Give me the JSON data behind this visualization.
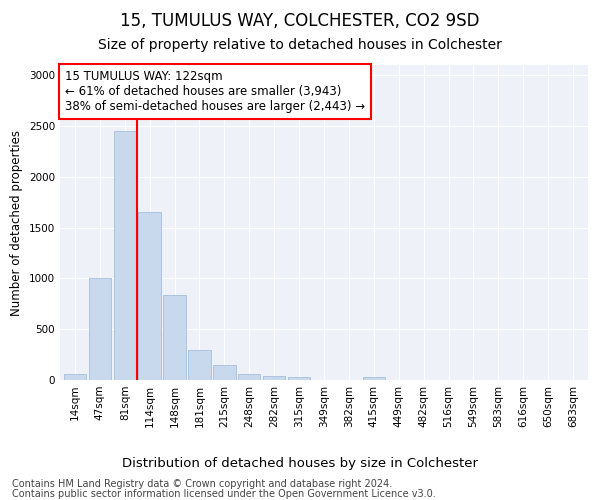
{
  "title": "15, TUMULUS WAY, COLCHESTER, CO2 9SD",
  "subtitle": "Size of property relative to detached houses in Colchester",
  "xlabel": "Distribution of detached houses by size in Colchester",
  "ylabel": "Number of detached properties",
  "bar_labels": [
    "14sqm",
    "47sqm",
    "81sqm",
    "114sqm",
    "148sqm",
    "181sqm",
    "215sqm",
    "248sqm",
    "282sqm",
    "315sqm",
    "349sqm",
    "382sqm",
    "415sqm",
    "449sqm",
    "482sqm",
    "516sqm",
    "549sqm",
    "583sqm",
    "616sqm",
    "650sqm",
    "683sqm"
  ],
  "bar_values": [
    55,
    1000,
    2450,
    1650,
    840,
    300,
    150,
    55,
    35,
    25,
    0,
    0,
    30,
    0,
    0,
    0,
    0,
    0,
    0,
    0,
    0
  ],
  "bar_color": "#c8d9ee",
  "bar_edgecolor": "#9ab8d8",
  "annotation_text": "15 TUMULUS WAY: 122sqm\n← 61% of detached houses are smaller (3,943)\n38% of semi-detached houses are larger (2,443) →",
  "annotation_box_color": "white",
  "annotation_box_edgecolor": "red",
  "vline_color": "red",
  "vline_x": 2.5,
  "ylim": [
    0,
    3100
  ],
  "yticks": [
    0,
    500,
    1000,
    1500,
    2000,
    2500,
    3000
  ],
  "footnote1": "Contains HM Land Registry data © Crown copyright and database right 2024.",
  "footnote2": "Contains public sector information licensed under the Open Government Licence v3.0.",
  "bg_color": "#eef2f8",
  "title_fontsize": 12,
  "subtitle_fontsize": 10,
  "xlabel_fontsize": 9.5,
  "ylabel_fontsize": 8.5,
  "tick_fontsize": 7.5,
  "annotation_fontsize": 8.5,
  "footnote_fontsize": 7
}
